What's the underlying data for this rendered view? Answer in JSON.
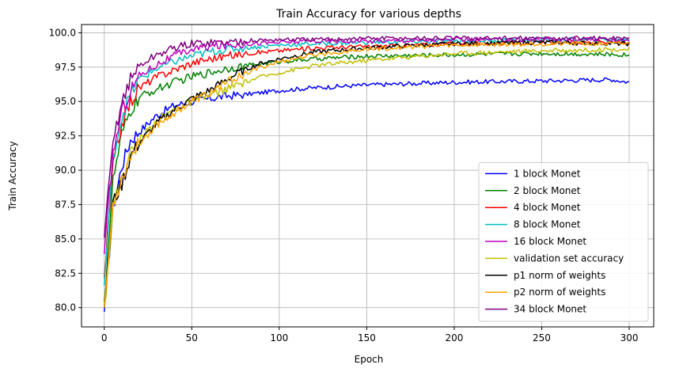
{
  "chart_data": {
    "type": "line",
    "title": "Train Accuracy for various depths",
    "xlabel": "Epoch",
    "ylabel": "Train Accuracy",
    "xlim": [
      -13,
      314
    ],
    "ylim": [
      78.6,
      100.6
    ],
    "xticks": [
      0,
      50,
      100,
      150,
      200,
      250,
      300
    ],
    "xtick_labels": [
      "0",
      "50",
      "100",
      "150",
      "200",
      "250",
      "300"
    ],
    "yticks": [
      80.0,
      82.5,
      85.0,
      87.5,
      90.0,
      92.5,
      95.0,
      97.5,
      100.0
    ],
    "ytick_labels": [
      "80.0",
      "82.5",
      "85.0",
      "87.5",
      "90.0",
      "92.5",
      "95.0",
      "97.5",
      "100.0"
    ],
    "grid": true,
    "legend_position": "lower-right",
    "series": [
      {
        "name": "1 block Monet",
        "color": "#0000ff",
        "x": [
          0,
          5,
          10,
          15,
          20,
          30,
          40,
          50,
          60,
          70,
          80,
          100,
          120,
          150,
          200,
          250,
          290,
          300
        ],
        "y": [
          79.7,
          87.2,
          90.3,
          92.2,
          92.8,
          94.0,
          94.7,
          95.0,
          95.2,
          95.4,
          95.5,
          95.8,
          96.0,
          96.2,
          96.4,
          96.5,
          96.6,
          96.4
        ]
      },
      {
        "name": "2 block Monet",
        "color": "#008000",
        "x": [
          0,
          5,
          10,
          15,
          20,
          30,
          40,
          50,
          60,
          70,
          80,
          100,
          120,
          150,
          200,
          250,
          300
        ],
        "y": [
          80.4,
          89.2,
          92.5,
          94.3,
          95.3,
          95.9,
          96.4,
          96.8,
          97.1,
          97.4,
          97.6,
          97.9,
          98.1,
          98.3,
          98.4,
          98.5,
          98.4
        ]
      },
      {
        "name": "4 block Monet",
        "color": "#ff0000",
        "x": [
          0,
          5,
          10,
          15,
          20,
          30,
          40,
          50,
          60,
          70,
          80,
          100,
          120,
          150,
          200,
          250,
          300
        ],
        "y": [
          82.2,
          90.3,
          93.4,
          95.0,
          96.0,
          96.8,
          97.3,
          97.8,
          98.1,
          98.3,
          98.5,
          98.7,
          98.9,
          99.0,
          99.2,
          99.3,
          99.3
        ]
      },
      {
        "name": "8 block Monet",
        "color": "#00bfbf",
        "x": [
          0,
          5,
          10,
          15,
          20,
          30,
          40,
          50,
          60,
          70,
          80,
          100,
          120,
          150,
          200,
          250,
          300
        ],
        "y": [
          81.6,
          90.9,
          93.9,
          95.5,
          96.6,
          97.4,
          97.9,
          98.3,
          98.6,
          98.8,
          98.9,
          99.1,
          99.2,
          99.3,
          99.4,
          99.5,
          99.5
        ]
      },
      {
        "name": "16 block Monet",
        "color": "#bf00bf",
        "x": [
          0,
          5,
          10,
          15,
          20,
          30,
          40,
          50,
          60,
          70,
          80,
          100,
          120,
          150,
          200,
          250,
          300
        ],
        "y": [
          83.9,
          91.2,
          94.3,
          95.8,
          96.9,
          97.7,
          98.3,
          98.8,
          99.0,
          99.1,
          99.2,
          99.3,
          99.4,
          99.4,
          99.5,
          99.5,
          99.5
        ]
      },
      {
        "name": "validation set accuracy",
        "color": "#bfbf00",
        "x": [
          0,
          5,
          10,
          15,
          20,
          30,
          40,
          50,
          60,
          70,
          80,
          90,
          100,
          120,
          150,
          180,
          200,
          250,
          300
        ],
        "y": [
          80.0,
          87.2,
          89.6,
          91.2,
          92.2,
          93.6,
          94.4,
          95.0,
          95.4,
          95.9,
          96.4,
          96.8,
          97.1,
          97.6,
          98.0,
          98.3,
          98.5,
          98.7,
          98.8
        ]
      },
      {
        "name": "p1 norm of weights",
        "color": "#000000",
        "x": [
          0,
          5,
          10,
          15,
          20,
          30,
          40,
          50,
          60,
          70,
          80,
          90,
          100,
          120,
          150,
          180,
          200,
          250,
          300
        ],
        "y": [
          80.1,
          87.6,
          89.0,
          91.0,
          92.0,
          93.4,
          94.4,
          95.2,
          95.8,
          96.6,
          97.3,
          97.8,
          98.1,
          98.6,
          98.9,
          99.1,
          99.2,
          99.3,
          99.2
        ]
      },
      {
        "name": "p2 norm of weights",
        "color": "#ffa500",
        "x": [
          0,
          5,
          10,
          15,
          20,
          30,
          40,
          50,
          60,
          70,
          80,
          90,
          100,
          120,
          150,
          180,
          200,
          250,
          300
        ],
        "y": [
          80.0,
          87.5,
          89.4,
          91.0,
          92.0,
          93.3,
          94.2,
          95.0,
          95.6,
          96.4,
          97.0,
          97.5,
          97.9,
          98.4,
          98.8,
          99.0,
          99.1,
          99.2,
          99.2
        ]
      },
      {
        "name": "34 block Monet",
        "color": "#800080",
        "x": [
          0,
          5,
          10,
          15,
          20,
          30,
          40,
          50,
          60,
          70,
          80,
          100,
          120,
          150,
          200,
          250,
          300
        ],
        "y": [
          85.1,
          92.0,
          95.0,
          96.6,
          97.6,
          98.4,
          98.9,
          99.2,
          99.3,
          99.3,
          99.4,
          99.5,
          99.5,
          99.6,
          99.6,
          99.6,
          99.6
        ]
      }
    ]
  }
}
